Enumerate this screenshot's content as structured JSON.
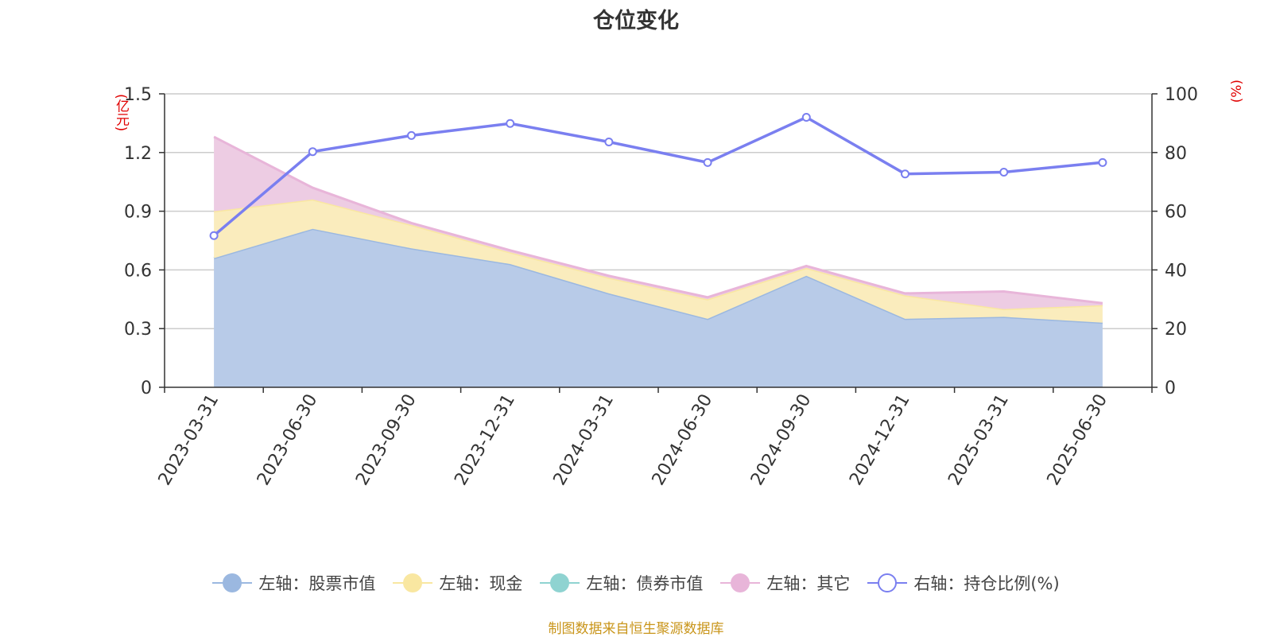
{
  "page": {
    "title": "仓位变化",
    "source": "制图数据来自恒生聚源数据库"
  },
  "chart_data": {
    "type": "area",
    "title": "仓位变化",
    "categories": [
      "2023-03-31",
      "2023-06-30",
      "2023-09-30",
      "2023-12-31",
      "2024-03-31",
      "2024-06-30",
      "2024-09-30",
      "2024-12-31",
      "2025-03-31",
      "2025-06-30"
    ],
    "left_axis": {
      "unit": "(亿元)",
      "range": [
        0,
        1.5
      ],
      "ticks": [
        "0",
        "0.3",
        "0.6",
        "0.9",
        "1.2",
        "1.5"
      ],
      "unit_color": "#e00000"
    },
    "right_axis": {
      "unit": "(%)",
      "range": [
        0,
        100
      ],
      "ticks": [
        "0",
        "20",
        "40",
        "60",
        "80",
        "100"
      ],
      "unit_color": "#e00000"
    },
    "grid": true,
    "legend_position": "bottom",
    "stacked": true,
    "series": [
      {
        "name": "左轴：股票市值",
        "axis": "left",
        "kind": "area",
        "color": "#9bb8e0",
        "fill": "#b8cbe8",
        "values": [
          0.66,
          0.81,
          0.71,
          0.63,
          0.48,
          0.35,
          0.57,
          0.35,
          0.36,
          0.33
        ]
      },
      {
        "name": "左轴：现金",
        "axis": "left",
        "kind": "area",
        "color": "#f9e7a1",
        "fill": "#faecbd",
        "values": [
          0.24,
          0.15,
          0.12,
          0.06,
          0.08,
          0.1,
          0.04,
          0.12,
          0.04,
          0.09
        ]
      },
      {
        "name": "左轴：债券市值",
        "axis": "left",
        "kind": "area",
        "color": "#8fd3d1",
        "fill": "#b5e2e0",
        "values": [
          0,
          0,
          0,
          0,
          0,
          0,
          0,
          0,
          0,
          0
        ]
      },
      {
        "name": "左轴：其它",
        "axis": "left",
        "kind": "area",
        "color": "#e8b5d9",
        "fill": "#edcce3",
        "values": [
          0.38,
          0.06,
          0.01,
          0.01,
          0.01,
          0.01,
          0.01,
          0.01,
          0.09,
          0.01
        ]
      },
      {
        "name": "右轴：持仓比例(%)",
        "axis": "right",
        "kind": "line",
        "color": "#7a7ff0",
        "values": [
          51.7,
          80.3,
          85.8,
          89.9,
          83.6,
          76.6,
          92.0,
          72.7,
          73.3,
          76.6
        ]
      }
    ]
  }
}
